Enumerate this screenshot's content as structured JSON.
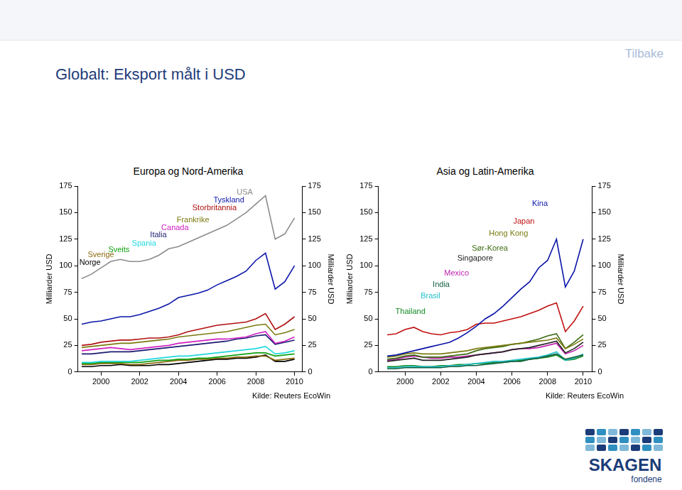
{
  "page": {
    "title": "Globalt: Eksport målt i USD",
    "link": "Tilbake",
    "logo": [
      "SKAGEN",
      "fondene"
    ]
  },
  "chart_data": [
    {
      "type": "line",
      "title": "Europa og Nord-Amerika",
      "y_label": "Milliarder USD",
      "y2_label": "Milliarder USD",
      "annotation": "Kilde: Reuters EcoWin",
      "x": [
        1999,
        1999.5,
        2000,
        2000.5,
        2001,
        2001.5,
        2002,
        2002.5,
        2003,
        2003.5,
        2004,
        2004.5,
        2005,
        2005.5,
        2006,
        2006.5,
        2007,
        2007.5,
        2008,
        2008.5,
        2009,
        2009.5,
        2010
      ],
      "xlim": [
        1998.8,
        2010.4
      ],
      "xticks": [
        2000,
        2002,
        2004,
        2006,
        2008,
        2010
      ],
      "ylim": [
        0,
        175
      ],
      "yticks": [
        0,
        25,
        50,
        75,
        100,
        125,
        150,
        175
      ],
      "y2lim": [
        0,
        175
      ],
      "y2ticks": [
        0,
        25,
        50,
        75,
        100,
        125,
        150,
        175
      ],
      "grid": false,
      "series": [
        {
          "name": "USA",
          "color": "#8c8c8c",
          "values": [
            88,
            92,
            98,
            104,
            106,
            104,
            104,
            106,
            110,
            116,
            118,
            122,
            126,
            130,
            134,
            138,
            144,
            150,
            158,
            166,
            125,
            130,
            145
          ]
        },
        {
          "name": "Tyskland",
          "color": "#0a14a8",
          "values": [
            45,
            47,
            48,
            50,
            52,
            52,
            54,
            57,
            60,
            64,
            70,
            72,
            74,
            77,
            82,
            86,
            90,
            95,
            105,
            112,
            78,
            85,
            100
          ]
        },
        {
          "name": "Storbritannia",
          "color": "#b01010",
          "values": [
            25,
            26,
            28,
            29,
            30,
            30,
            31,
            32,
            32,
            33,
            35,
            38,
            40,
            42,
            44,
            45,
            46,
            47,
            50,
            55,
            40,
            45,
            52
          ]
        },
        {
          "name": "Frankrike",
          "color": "#7a7a10",
          "values": [
            23,
            24,
            25,
            26,
            27,
            27,
            28,
            29,
            30,
            31,
            33,
            34,
            35,
            36,
            37,
            38,
            40,
            42,
            44,
            45,
            35,
            37,
            40
          ]
        },
        {
          "name": "Canada",
          "color": "#d020c0",
          "values": [
            20,
            21,
            22,
            23,
            22,
            21,
            22,
            23,
            24,
            25,
            27,
            28,
            29,
            30,
            31,
            31,
            32,
            33,
            36,
            38,
            27,
            29,
            33
          ]
        },
        {
          "name": "Italia",
          "color": "#1a1a70",
          "values": [
            17,
            17,
            18,
            19,
            19,
            19,
            20,
            21,
            22,
            23,
            24,
            25,
            26,
            27,
            28,
            29,
            31,
            32,
            34,
            35,
            26,
            28,
            30
          ]
        },
        {
          "name": "Spania",
          "color": "#20d8e0",
          "values": [
            9,
            9,
            10,
            10,
            10,
            10,
            11,
            12,
            13,
            14,
            15,
            15,
            16,
            17,
            18,
            19,
            20,
            21,
            22,
            24,
            17,
            18,
            20
          ]
        },
        {
          "name": "Sveits",
          "color": "#10a010",
          "values": [
            8,
            8,
            9,
            9,
            9,
            9,
            9,
            10,
            11,
            11,
            12,
            12,
            13,
            13,
            14,
            15,
            16,
            17,
            18,
            18,
            15,
            16,
            17
          ]
        },
        {
          "name": "Sverige",
          "color": "#8a6a10",
          "values": [
            7,
            7,
            8,
            8,
            8,
            7,
            7,
            8,
            9,
            10,
            11,
            11,
            12,
            12,
            13,
            13,
            14,
            14,
            15,
            15,
            11,
            12,
            13
          ]
        },
        {
          "name": "Norge",
          "color": "#000000",
          "values": [
            5,
            5,
            6,
            6,
            7,
            6,
            6,
            6,
            7,
            7,
            8,
            9,
            10,
            11,
            12,
            12,
            13,
            13,
            14,
            16,
            10,
            10,
            12
          ]
        }
      ]
    },
    {
      "type": "line",
      "title": "Asia og Latin-Amerika",
      "y_label": "Milliarder USD",
      "y2_label": "Milliarder USD",
      "annotation": "Kilde: Reuters EcoWin",
      "x": [
        1999,
        1999.5,
        2000,
        2000.5,
        2001,
        2001.5,
        2002,
        2002.5,
        2003,
        2003.5,
        2004,
        2004.5,
        2005,
        2005.5,
        2006,
        2006.5,
        2007,
        2007.5,
        2008,
        2008.5,
        2009,
        2009.5,
        2010
      ],
      "xlim": [
        1998.5,
        2010.5
      ],
      "xticks": [
        2000,
        2002,
        2004,
        2006,
        2008,
        2010
      ],
      "ylim": [
        0,
        175
      ],
      "yticks": [
        0,
        25,
        50,
        75,
        100,
        125,
        150,
        175
      ],
      "y2lim": [
        0,
        175
      ],
      "y2ticks": [
        0,
        25,
        50,
        75,
        100,
        125,
        150,
        175
      ],
      "grid": false,
      "series": [
        {
          "name": "Kina",
          "color": "#0a14a8",
          "values": [
            15,
            16,
            18,
            20,
            22,
            24,
            26,
            28,
            32,
            37,
            43,
            50,
            55,
            62,
            70,
            78,
            85,
            98,
            105,
            125,
            80,
            95,
            125
          ]
        },
        {
          "name": "Japan",
          "color": "#c01010",
          "values": [
            35,
            36,
            40,
            42,
            38,
            36,
            35,
            37,
            38,
            40,
            45,
            46,
            46,
            48,
            50,
            52,
            55,
            58,
            62,
            65,
            38,
            48,
            62
          ]
        },
        {
          "name": "Hong Kong",
          "color": "#7a7a10",
          "values": [
            14,
            15,
            17,
            18,
            17,
            17,
            17,
            18,
            19,
            20,
            22,
            23,
            24,
            25,
            26,
            27,
            28,
            29,
            30,
            32,
            22,
            26,
            31
          ]
        },
        {
          "name": "Sør-Korea",
          "color": "#3a6a10",
          "values": [
            12,
            13,
            15,
            16,
            14,
            14,
            14,
            15,
            16,
            17,
            20,
            22,
            23,
            24,
            26,
            27,
            29,
            31,
            34,
            36,
            22,
            28,
            35
          ]
        },
        {
          "name": "Singapore",
          "color": "#202020",
          "values": [
            10,
            11,
            12,
            13,
            11,
            11,
            11,
            12,
            13,
            14,
            16,
            17,
            18,
            19,
            21,
            22,
            23,
            25,
            27,
            29,
            18,
            22,
            28
          ]
        },
        {
          "name": "Mexico",
          "color": "#c020b0",
          "values": [
            11,
            12,
            14,
            15,
            14,
            13,
            13,
            14,
            14,
            15,
            16,
            17,
            18,
            19,
            21,
            22,
            22,
            23,
            25,
            27,
            17,
            20,
            25
          ]
        },
        {
          "name": "India",
          "color": "#106040",
          "values": [
            3,
            3,
            4,
            4,
            4,
            4,
            4,
            5,
            5,
            6,
            6,
            7,
            8,
            9,
            10,
            10,
            12,
            13,
            15,
            17,
            12,
            14,
            16
          ]
        },
        {
          "name": "Brasil",
          "color": "#20c0c8",
          "values": [
            4,
            4,
            5,
            5,
            5,
            5,
            5,
            6,
            6,
            7,
            8,
            9,
            10,
            10,
            11,
            12,
            13,
            14,
            16,
            19,
            11,
            13,
            17
          ]
        },
        {
          "name": "Thailand",
          "color": "#108a20",
          "values": [
            5,
            5,
            6,
            6,
            5,
            5,
            6,
            6,
            7,
            7,
            8,
            8,
            9,
            9,
            10,
            11,
            12,
            13,
            14,
            16,
            11,
            12,
            15
          ]
        }
      ]
    }
  ]
}
